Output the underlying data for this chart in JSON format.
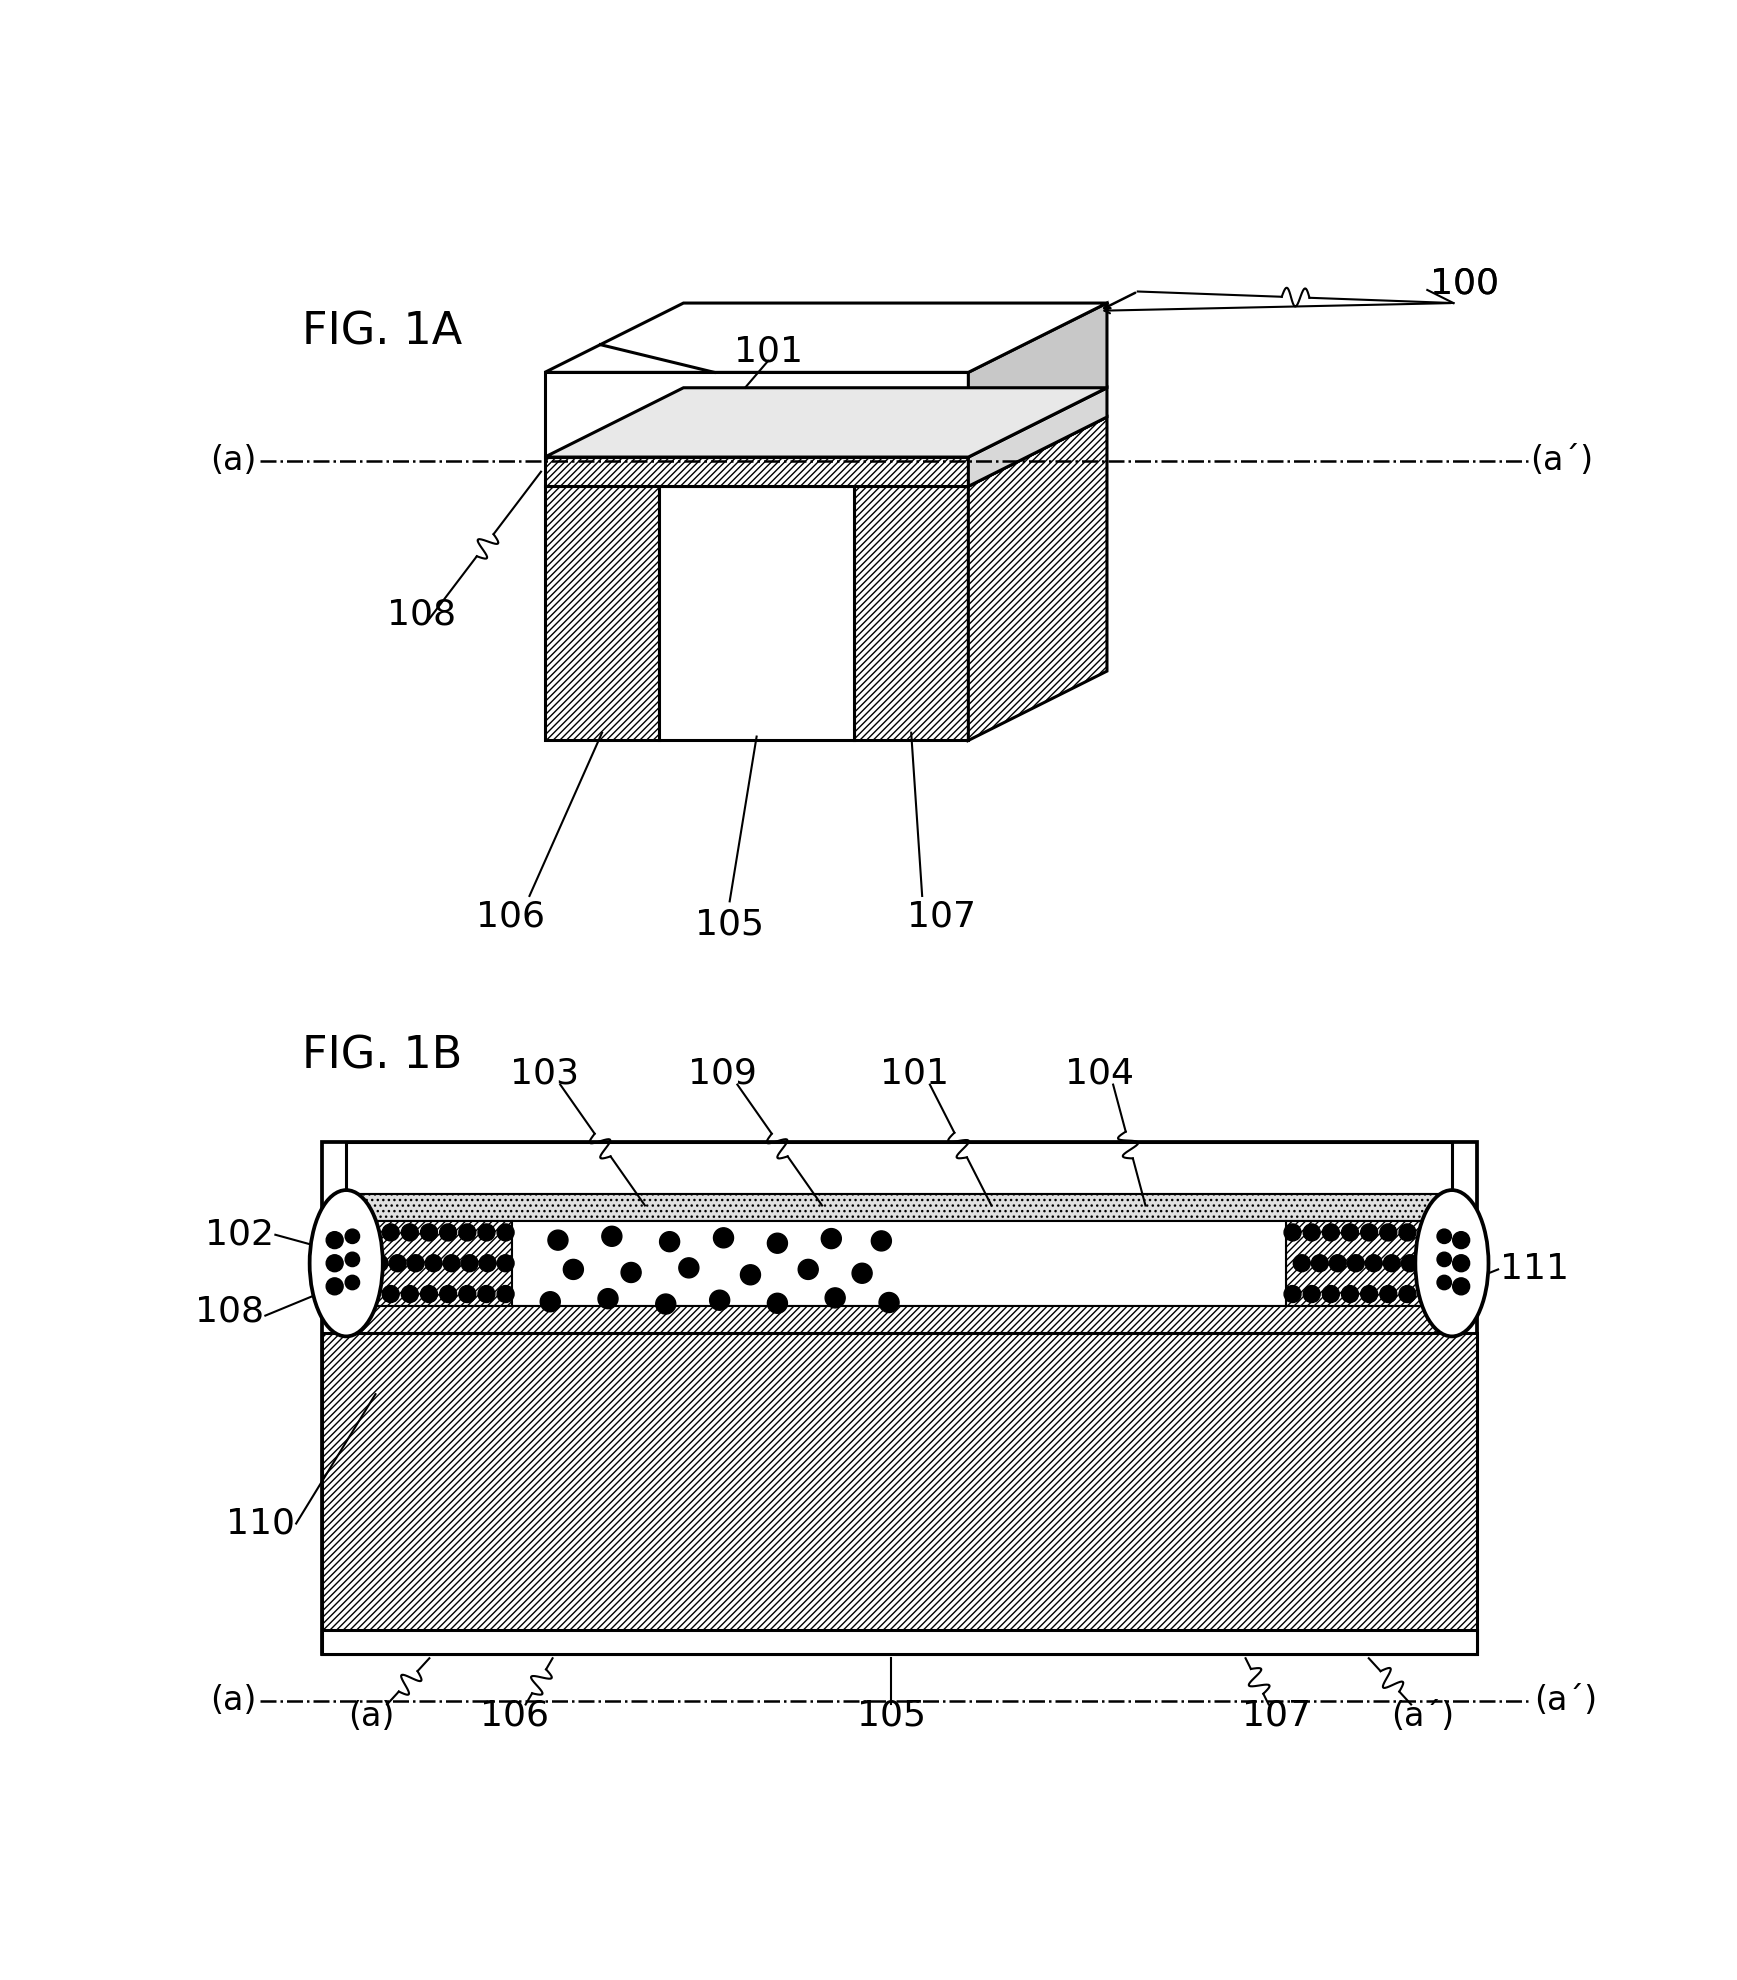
{
  "bg_color": "#ffffff",
  "fig1a_label": "FIG. 1A",
  "fig1b_label": "FIG. 1B",
  "label_100": "100",
  "label_101": "101",
  "label_102": "102",
  "label_103": "103",
  "label_104": "104",
  "label_105": "105",
  "label_106": "106",
  "label_107": "107",
  "label_108": "108",
  "label_109": "109",
  "label_110": "110",
  "label_111": "111",
  "label_a": "(a)",
  "label_a_prime": "(a´)",
  "lw_main": 2.2,
  "lw_thin": 1.5,
  "fontsize_label": 26,
  "fontsize_fig": 32
}
